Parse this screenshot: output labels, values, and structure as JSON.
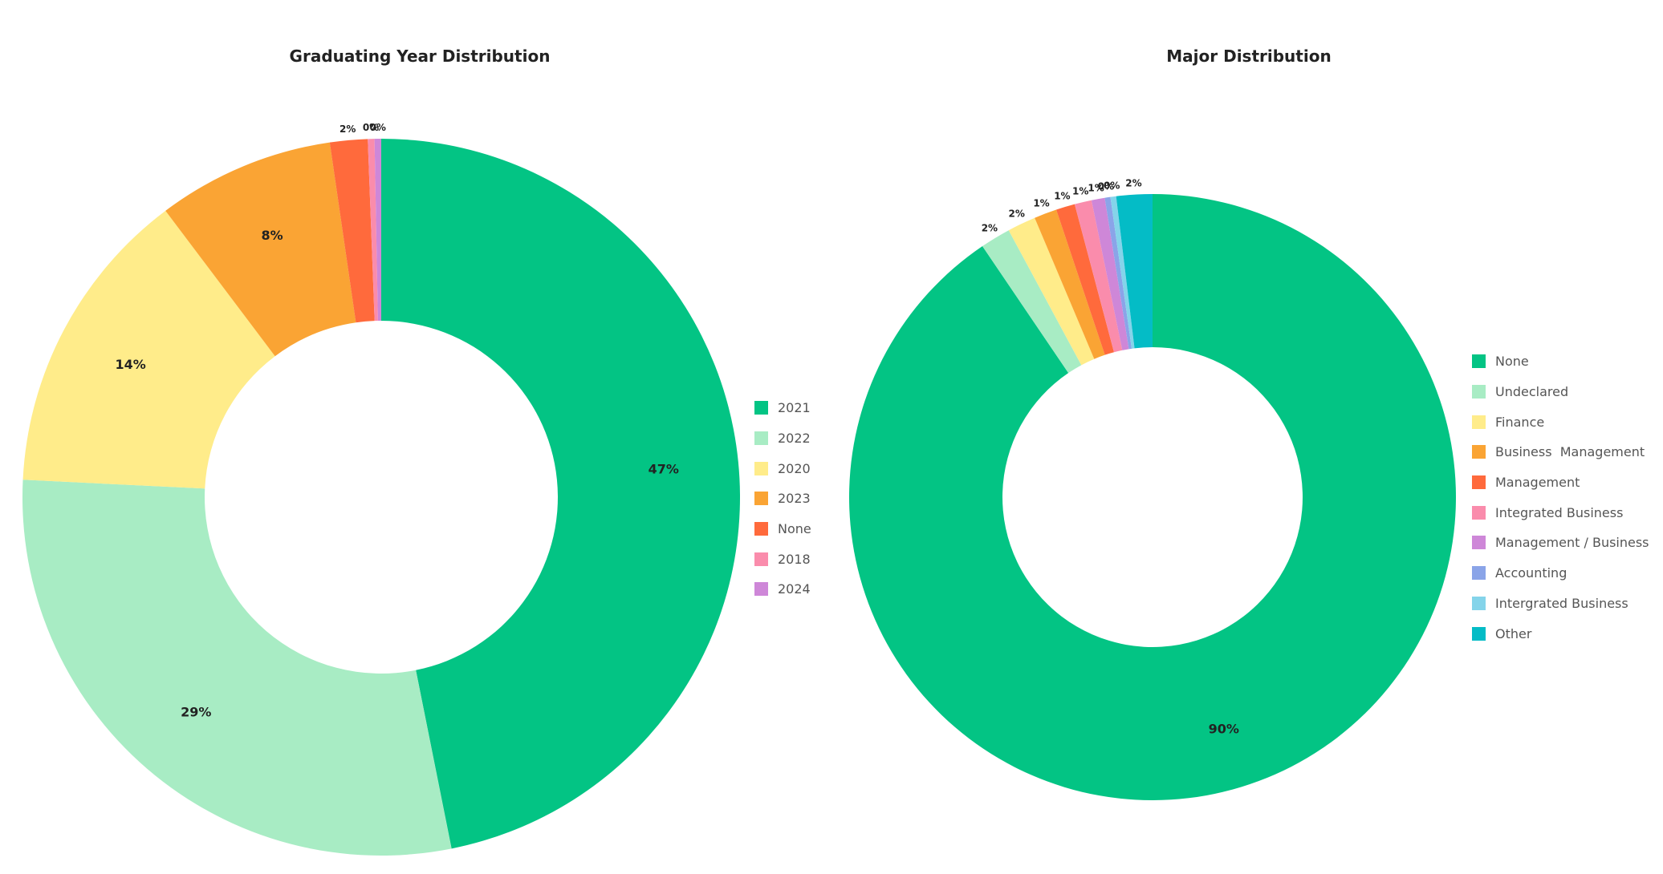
{
  "charts": [
    {
      "title": "Graduating Year Distribution",
      "legend": [
        "2021",
        "2022",
        "2020",
        "2023",
        "None",
        "2018",
        "2024"
      ]
    },
    {
      "title": "Major Distribution",
      "legend": [
        "None",
        "Undeclared",
        "Finance",
        "Business  Management",
        "Management",
        "Integrated Business",
        "Management / Business",
        "Accounting",
        "Intergrated Business",
        "Other"
      ]
    }
  ],
  "chart_data": [
    {
      "type": "pie",
      "title": "Graduating Year Distribution",
      "legend_position": "right",
      "donut": true,
      "slices": [
        {
          "label": "2021",
          "value": 47,
          "display": "47%",
          "color": "#03c484"
        },
        {
          "label": "2022",
          "value": 29,
          "display": "29%",
          "color": "#a8ecc4"
        },
        {
          "label": "2020",
          "value": 14,
          "display": "14%",
          "color": "#ffec8a"
        },
        {
          "label": "2023",
          "value": 8,
          "display": "8%",
          "color": "#faa434"
        },
        {
          "label": "None",
          "value": 1.7,
          "display": "2%",
          "color": "#ff6a3c"
        },
        {
          "label": "2018",
          "value": 0.3,
          "display": "0%",
          "color": "#fa8cac"
        },
        {
          "label": "2024",
          "value": 0.3,
          "display": "0%",
          "color": "#ce87d8"
        }
      ]
    },
    {
      "type": "pie",
      "title": "Major Distribution",
      "legend_position": "right",
      "donut": true,
      "slices": [
        {
          "label": "None",
          "value": 89.8,
          "display": "90%",
          "color": "#03c484"
        },
        {
          "label": "Undeclared",
          "value": 1.6,
          "display": "2%",
          "color": "#a8ecc4"
        },
        {
          "label": "Finance",
          "value": 1.5,
          "display": "2%",
          "color": "#ffec8a"
        },
        {
          "label": "Business  Management",
          "value": 1.2,
          "display": "1%",
          "color": "#faa434"
        },
        {
          "label": "Management",
          "value": 1.0,
          "display": "1%",
          "color": "#ff6a3c"
        },
        {
          "label": "Integrated Business",
          "value": 0.9,
          "display": "1%",
          "color": "#fa8cac"
        },
        {
          "label": "Management / Business",
          "value": 0.7,
          "display": "1%",
          "color": "#ce87d8"
        },
        {
          "label": "Accounting",
          "value": 0.3,
          "display": "0%",
          "color": "#8aa4e8"
        },
        {
          "label": "Intergrated Business",
          "value": 0.3,
          "display": "0%",
          "color": "#84d4ea"
        },
        {
          "label": "Other",
          "value": 1.9,
          "display": "2%",
          "color": "#04bcc6"
        }
      ]
    }
  ]
}
